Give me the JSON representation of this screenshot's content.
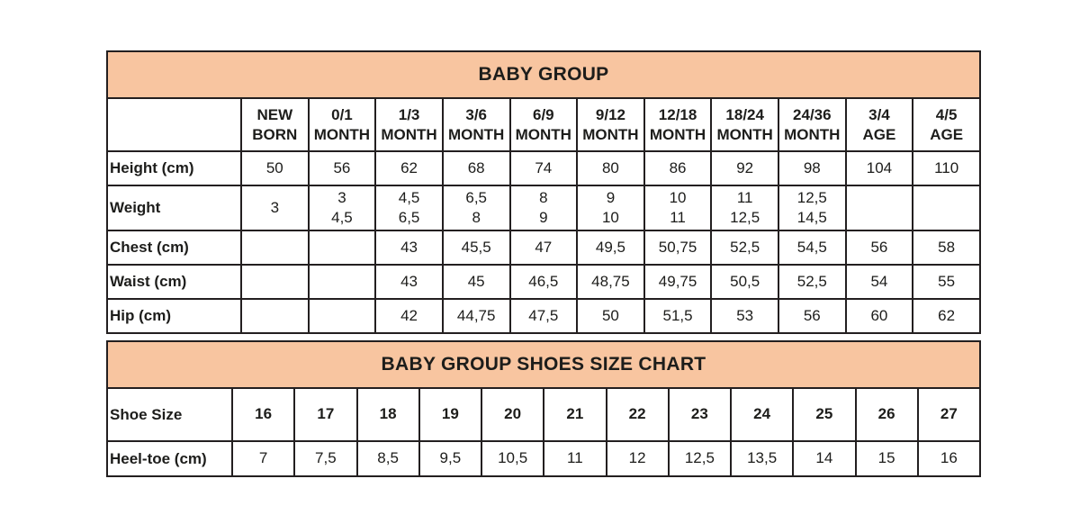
{
  "colors": {
    "header_band_bg": "#f8c5a0",
    "border": "#231f20",
    "text": "#1d1d1b",
    "page_bg": "#ffffff"
  },
  "tables": [
    {
      "id": "baby-group",
      "title": "BABY GROUP",
      "columns": [
        "",
        "NEW\nBORN",
        "0/1\nMONTH",
        "1/3\nMONTH",
        "3/6\nMONTH",
        "6/9\nMONTH",
        "9/12\nMONTH",
        "12/18\nMONTH",
        "18/24\nMONTH",
        "24/36\nMONTH",
        "3/4\nAGE",
        "4/5\nAGE"
      ],
      "rows": [
        {
          "label": "Height (cm)",
          "values": [
            "50",
            "56",
            "62",
            "68",
            "74",
            "80",
            "86",
            "92",
            "98",
            "104",
            "110"
          ]
        },
        {
          "label": "Weight",
          "values": [
            "3",
            "3\n4,5",
            "4,5\n6,5",
            "6,5\n8",
            "8\n9",
            "9\n10",
            "10\n11",
            "11\n12,5",
            "12,5\n14,5",
            "",
            ""
          ]
        },
        {
          "label": "Chest (cm)",
          "values": [
            "",
            "",
            "43",
            "45,5",
            "47",
            "49,5",
            "50,75",
            "52,5",
            "54,5",
            "56",
            "58"
          ]
        },
        {
          "label": "Waist (cm)",
          "values": [
            "",
            "",
            "43",
            "45",
            "46,5",
            "48,75",
            "49,75",
            "50,5",
            "52,5",
            "54",
            "55"
          ]
        },
        {
          "label": "Hip (cm)",
          "values": [
            "",
            "",
            "42",
            "44,75",
            "47,5",
            "50",
            "51,5",
            "53",
            "56",
            "60",
            "62"
          ]
        }
      ]
    },
    {
      "id": "shoes",
      "title": "BABY GROUP SHOES SIZE CHART",
      "columns": null,
      "rows": [
        {
          "label": "Shoe Size",
          "values": [
            "16",
            "17",
            "18",
            "19",
            "20",
            "21",
            "22",
            "23",
            "24",
            "25",
            "26",
            "27"
          ]
        },
        {
          "label": "Heel-toe (cm)",
          "values": [
            "7",
            "7,5",
            "8,5",
            "9,5",
            "10,5",
            "11",
            "12",
            "12,5",
            "13,5",
            "14",
            "15",
            "16"
          ]
        }
      ]
    }
  ]
}
